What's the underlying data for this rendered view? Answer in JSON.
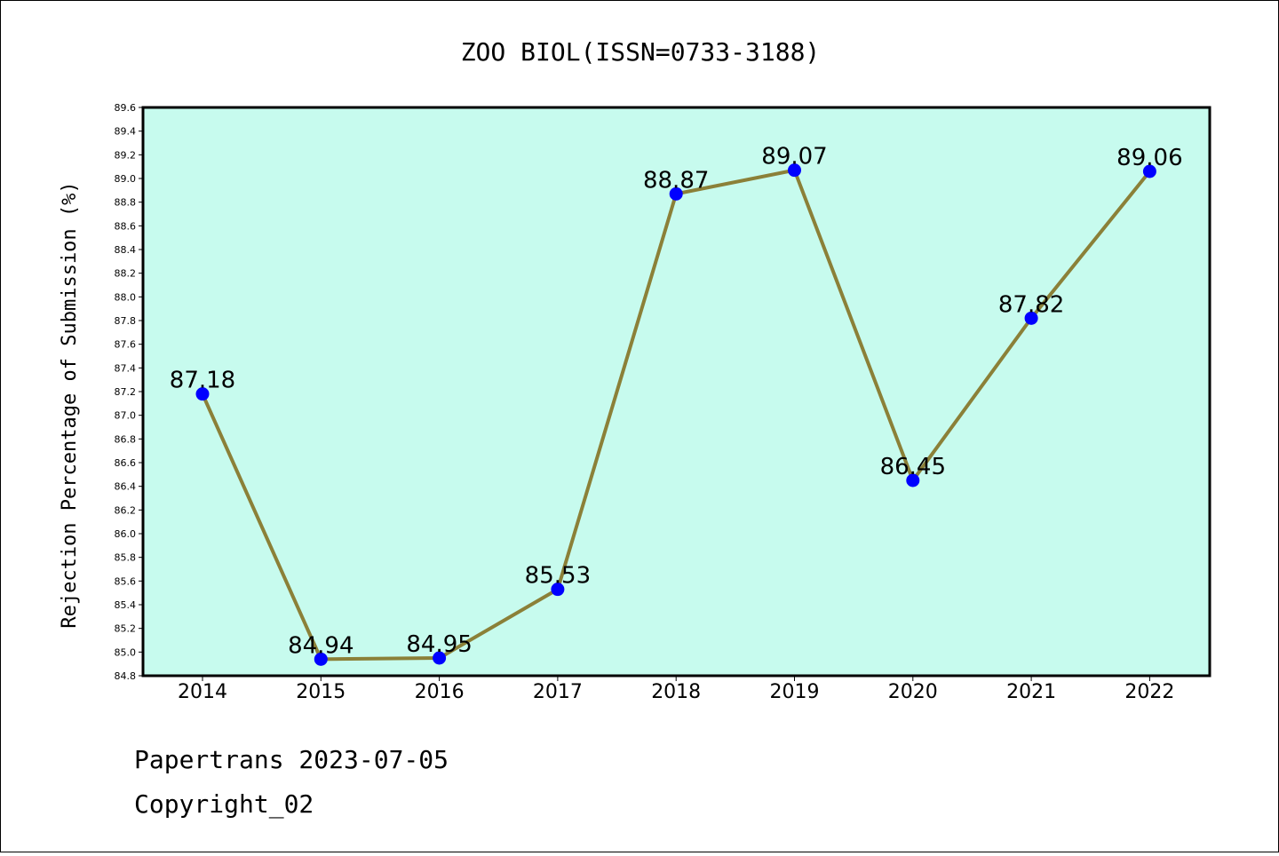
{
  "chart_data": {
    "type": "line",
    "title": "ZOO BIOL(ISSN=0733-3188)",
    "xlabel": "",
    "ylabel": "Rejection Percentage of Submission (%)",
    "categories": [
      "2014",
      "2015",
      "2016",
      "2017",
      "2018",
      "2019",
      "2020",
      "2021",
      "2022"
    ],
    "values": [
      87.18,
      84.94,
      84.95,
      85.53,
      88.87,
      89.07,
      86.45,
      87.82,
      89.06
    ],
    "data_labels": [
      "87.18",
      "84.94",
      "84.95",
      "85.53",
      "88.87",
      "89.07",
      "86.45",
      "87.82",
      "89.06"
    ],
    "ylim": [
      84.8,
      89.6
    ],
    "yticks": [
      "84.8",
      "85.0",
      "85.2",
      "85.4",
      "85.6",
      "85.8",
      "86.0",
      "86.2",
      "86.4",
      "86.6",
      "86.8",
      "87.0",
      "87.2",
      "87.4",
      "87.6",
      "87.8",
      "88.0",
      "88.2",
      "88.4",
      "88.6",
      "88.8",
      "89.0",
      "89.2",
      "89.4",
      "89.6"
    ],
    "grid": false,
    "colors": {
      "plot_background": "#c7fbee",
      "line": "#8b8038",
      "marker": "#0000ff"
    }
  },
  "footer": {
    "line1": "Papertrans 2023-07-05",
    "line2": "Copyright_02"
  }
}
